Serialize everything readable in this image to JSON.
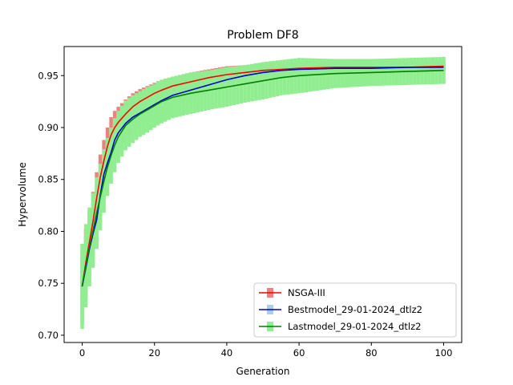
{
  "chart_data": {
    "type": "line",
    "title": "Problem DF8",
    "xlabel": "Generation",
    "ylabel": "Hypervolume",
    "xlim": [
      -5,
      105
    ],
    "ylim": [
      0.693,
      0.978
    ],
    "xticks": [
      0,
      20,
      40,
      60,
      80,
      100
    ],
    "yticks": [
      0.7,
      0.75,
      0.8,
      0.85,
      0.9,
      0.95
    ],
    "xtick_labels": [
      "0",
      "20",
      "40",
      "60",
      "80",
      "100"
    ],
    "ytick_labels": [
      "0.70",
      "0.75",
      "0.80",
      "0.85",
      "0.90",
      "0.95"
    ],
    "grid": false,
    "legend_position": "lower-right",
    "series": [
      {
        "name": "NSGA-III",
        "color": "#ff0000",
        "band_color": "#f08080",
        "x": [
          0,
          1,
          2,
          3,
          4,
          5,
          6,
          7,
          8,
          9,
          10,
          12,
          14,
          16,
          18,
          20,
          22,
          25,
          30,
          35,
          40,
          45,
          50,
          55,
          60,
          70,
          80,
          90,
          100
        ],
        "values": [
          0.747,
          0.77,
          0.79,
          0.81,
          0.832,
          0.852,
          0.868,
          0.882,
          0.893,
          0.9,
          0.905,
          0.913,
          0.92,
          0.925,
          0.929,
          0.933,
          0.936,
          0.94,
          0.944,
          0.948,
          0.951,
          0.953,
          0.955,
          0.956,
          0.957,
          0.958,
          0.958,
          0.958,
          0.959
        ],
        "band_halfwidth": [
          0.035,
          0.032,
          0.03,
          0.028,
          0.025,
          0.022,
          0.02,
          0.018,
          0.017,
          0.016,
          0.015,
          0.014,
          0.013,
          0.012,
          0.011,
          0.01,
          0.01,
          0.009,
          0.009,
          0.008,
          0.008,
          0.007,
          0.007,
          0.006,
          0.006,
          0.005,
          0.005,
          0.005,
          0.005
        ]
      },
      {
        "name": "Bestmodel_29-01-2024_dtlz2",
        "color": "#0000cc",
        "band_color": "#a8d0e6",
        "x": [
          0,
          1,
          2,
          3,
          4,
          5,
          6,
          7,
          8,
          9,
          10,
          12,
          14,
          16,
          18,
          20,
          22,
          25,
          30,
          35,
          40,
          45,
          50,
          55,
          60,
          70,
          80,
          90,
          100
        ],
        "values": [
          0.747,
          0.765,
          0.783,
          0.798,
          0.811,
          0.835,
          0.855,
          0.866,
          0.876,
          0.888,
          0.895,
          0.904,
          0.91,
          0.914,
          0.918,
          0.922,
          0.926,
          0.931,
          0.936,
          0.941,
          0.946,
          0.95,
          0.953,
          0.955,
          0.956,
          0.957,
          0.957,
          0.958,
          0.958
        ],
        "band_halfwidth": [
          0.03,
          0.03,
          0.03,
          0.028,
          0.028,
          0.026,
          0.024,
          0.022,
          0.02,
          0.018,
          0.016,
          0.014,
          0.013,
          0.012,
          0.011,
          0.01,
          0.01,
          0.009,
          0.009,
          0.008,
          0.008,
          0.007,
          0.007,
          0.006,
          0.006,
          0.005,
          0.005,
          0.005,
          0.005
        ]
      },
      {
        "name": "Lastmodel_29-01-2024_dtlz2",
        "color": "#008000",
        "band_color": "#90ee90",
        "x": [
          0,
          1,
          2,
          3,
          4,
          5,
          6,
          7,
          8,
          9,
          10,
          12,
          14,
          16,
          18,
          20,
          22,
          25,
          30,
          35,
          40,
          45,
          50,
          55,
          60,
          70,
          80,
          90,
          100
        ],
        "values": [
          0.747,
          0.767,
          0.785,
          0.801,
          0.818,
          0.833,
          0.848,
          0.862,
          0.873,
          0.883,
          0.891,
          0.902,
          0.908,
          0.913,
          0.917,
          0.921,
          0.925,
          0.929,
          0.933,
          0.936,
          0.939,
          0.942,
          0.945,
          0.948,
          0.95,
          0.952,
          0.953,
          0.954,
          0.955
        ],
        "band_halfwidth": [
          0.041,
          0.04,
          0.038,
          0.036,
          0.034,
          0.032,
          0.03,
          0.028,
          0.027,
          0.026,
          0.025,
          0.024,
          0.023,
          0.022,
          0.022,
          0.021,
          0.021,
          0.02,
          0.02,
          0.019,
          0.019,
          0.018,
          0.018,
          0.017,
          0.017,
          0.014,
          0.013,
          0.013,
          0.013
        ]
      }
    ]
  }
}
